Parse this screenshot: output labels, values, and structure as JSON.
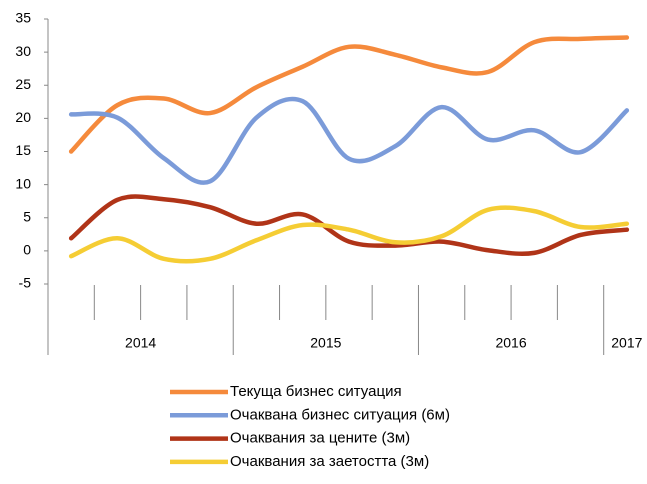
{
  "chart_data": {
    "type": "line",
    "categories": [
      null,
      null,
      null,
      null,
      null,
      null,
      null,
      null,
      null,
      null,
      null,
      null,
      null
    ],
    "year_groups": [
      {
        "label": "2014",
        "span": 4
      },
      {
        "label": "2015",
        "span": 4
      },
      {
        "label": "2016",
        "span": 4
      },
      {
        "label": "2017",
        "span": 1
      }
    ],
    "ylim": [
      -5,
      35
    ],
    "yticks": [
      -5,
      0,
      5,
      10,
      15,
      20,
      25,
      30,
      35
    ],
    "grid": false,
    "legend": "bottom",
    "smooth": true,
    "series": [
      {
        "name": "Текуща бизнес ситуация",
        "color": "#f58a3c",
        "values": [
          15,
          22,
          23,
          20.8,
          24.7,
          27.8,
          30.8,
          29.6,
          27.7,
          27,
          31.5,
          32,
          32.2
        ]
      },
      {
        "name": "Очаквана бизнес ситуация (6м)",
        "color": "#7b9bd9",
        "values": [
          20.6,
          20.1,
          14,
          10.5,
          20.1,
          22.6,
          13.9,
          15.8,
          21.7,
          16.8,
          18.2,
          14.9,
          21.2
        ]
      },
      {
        "name": "Очаквания за цените (3м)",
        "color": "#b03418",
        "values": [
          1.9,
          7.7,
          7.8,
          6.6,
          4.1,
          5.5,
          1.4,
          0.8,
          1.4,
          0.1,
          -0.3,
          2.4,
          3.2
        ]
      },
      {
        "name": "Очаквания за заетостта (3м)",
        "color": "#f5cd34",
        "values": [
          -0.8,
          1.9,
          -1.2,
          -1.2,
          1.6,
          3.9,
          3.2,
          1.3,
          2.2,
          6.2,
          6.0,
          3.6,
          4.1
        ]
      }
    ]
  }
}
